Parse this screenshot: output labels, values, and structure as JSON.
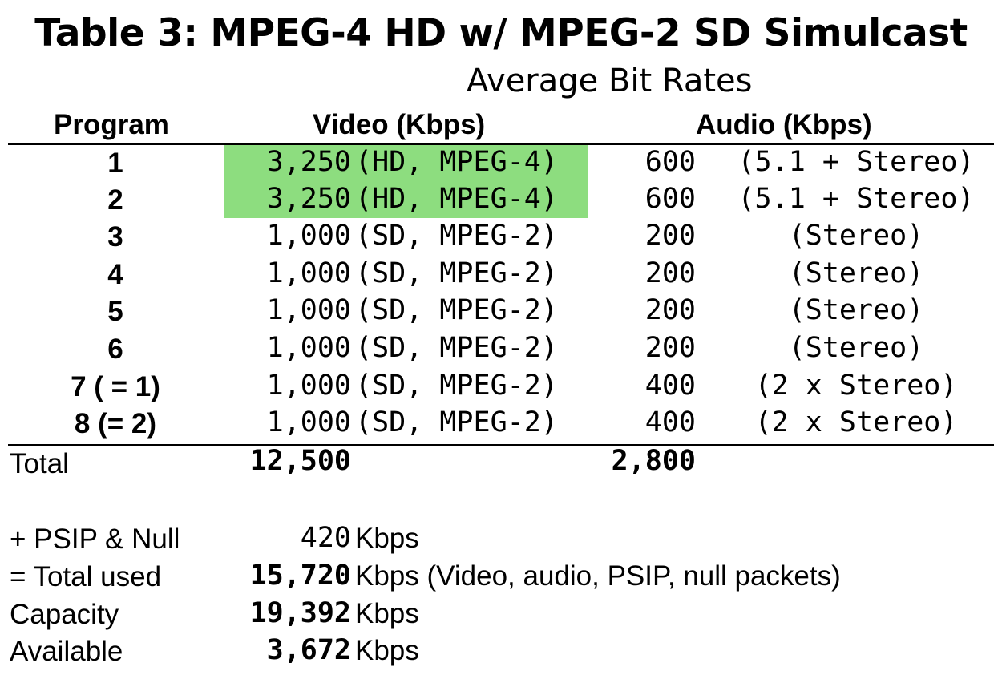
{
  "title": "Table 3: MPEG-4 HD w/ MPEG-2 SD Simulcast",
  "subtitle": "Average Bit Rates",
  "headers": {
    "program": "Program",
    "video": "Video (Kbps)",
    "audio": "Audio (Kbps)"
  },
  "highlight_color": "#8ddd7f",
  "rows": [
    {
      "program": "1",
      "video": "3,250",
      "video_desc": "(HD, MPEG-4)",
      "audio": "600",
      "audio_desc": "(5.1 + Stereo)"
    },
    {
      "program": "2",
      "video": "3,250",
      "video_desc": "(HD, MPEG-4)",
      "audio": "600",
      "audio_desc": "(5.1 + Stereo)"
    },
    {
      "program": "3",
      "video": "1,000",
      "video_desc": "(SD, MPEG-2)",
      "audio": "200",
      "audio_desc": "(Stereo)"
    },
    {
      "program": "4",
      "video": "1,000",
      "video_desc": "(SD, MPEG-2)",
      "audio": "200",
      "audio_desc": "(Stereo)"
    },
    {
      "program": "5",
      "video": "1,000",
      "video_desc": "(SD, MPEG-2)",
      "audio": "200",
      "audio_desc": "(Stereo)"
    },
    {
      "program": "6",
      "video": "1,000",
      "video_desc": "(SD, MPEG-2)",
      "audio": "200",
      "audio_desc": "(Stereo)"
    },
    {
      "program": "7 ( = 1)",
      "video": "1,000",
      "video_desc": "(SD, MPEG-2)",
      "audio": "400",
      "audio_desc": "(2 x Stereo)"
    },
    {
      "program": "8 (= 2)",
      "video": "1,000",
      "video_desc": "(SD, MPEG-2)",
      "audio": "400",
      "audio_desc": "(2 x Stereo)"
    }
  ],
  "total": {
    "label": "Total",
    "video": "12,500",
    "audio": "2,800"
  },
  "summary": [
    {
      "label": "+ PSIP & Null",
      "value": "420",
      "unit": "Kbps"
    },
    {
      "label": "= Total used",
      "value": "15,720",
      "unit": "Kbps (Video, audio, PSIP, null packets)"
    },
    {
      "label": "Capacity",
      "value": "19,392",
      "unit": "Kbps"
    },
    {
      "label": "Available",
      "value": "3,672",
      "unit": "Kbps"
    }
  ]
}
